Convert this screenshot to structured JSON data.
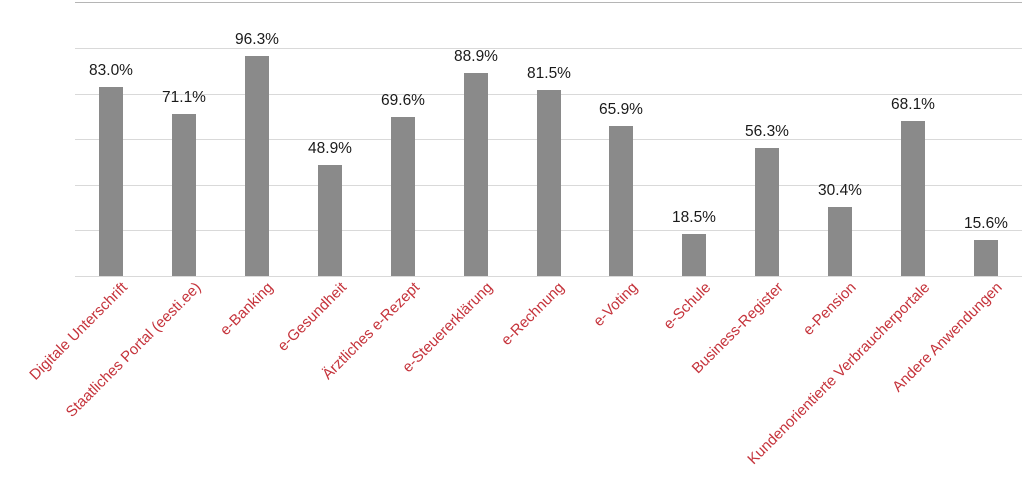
{
  "chart_data": {
    "type": "bar",
    "title": "",
    "xlabel": "",
    "ylabel": "",
    "categories": [
      "Digitale Unterschrift",
      "Staatliches Portal (eesti.ee)",
      "e-Banking",
      "e-Gesundheit",
      "Ärztliches e-Rezept",
      "e-Steuererklärung",
      "e-Rechnung",
      "e-Voting",
      "e-Schule",
      "Business-Register",
      "e-Pension",
      "Kundenorientierte Verbraucherportale",
      "Andere Anwendungen"
    ],
    "values": [
      83.0,
      71.1,
      96.3,
      48.9,
      69.6,
      88.9,
      81.5,
      65.9,
      18.5,
      56.3,
      30.4,
      68.1,
      15.6
    ],
    "value_labels": [
      "83.0%",
      "71.1%",
      "96.3%",
      "48.9%",
      "69.6%",
      "88.9%",
      "81.5%",
      "65.9%",
      "18.5%",
      "56.3%",
      "30.4%",
      "68.1%",
      "15.6%"
    ],
    "ylim": [
      0,
      120
    ],
    "grid_step": 20,
    "grid": true,
    "legend": false,
    "y_axis_tick_labels_visible": false,
    "colors": {
      "bar": "#8a8a8a",
      "gridline": "#d9d9d9",
      "top_gridline": "#b5b5b5",
      "value_label": "#1a1a1a",
      "category_label": "#c5333b",
      "background": "#ffffff"
    }
  }
}
